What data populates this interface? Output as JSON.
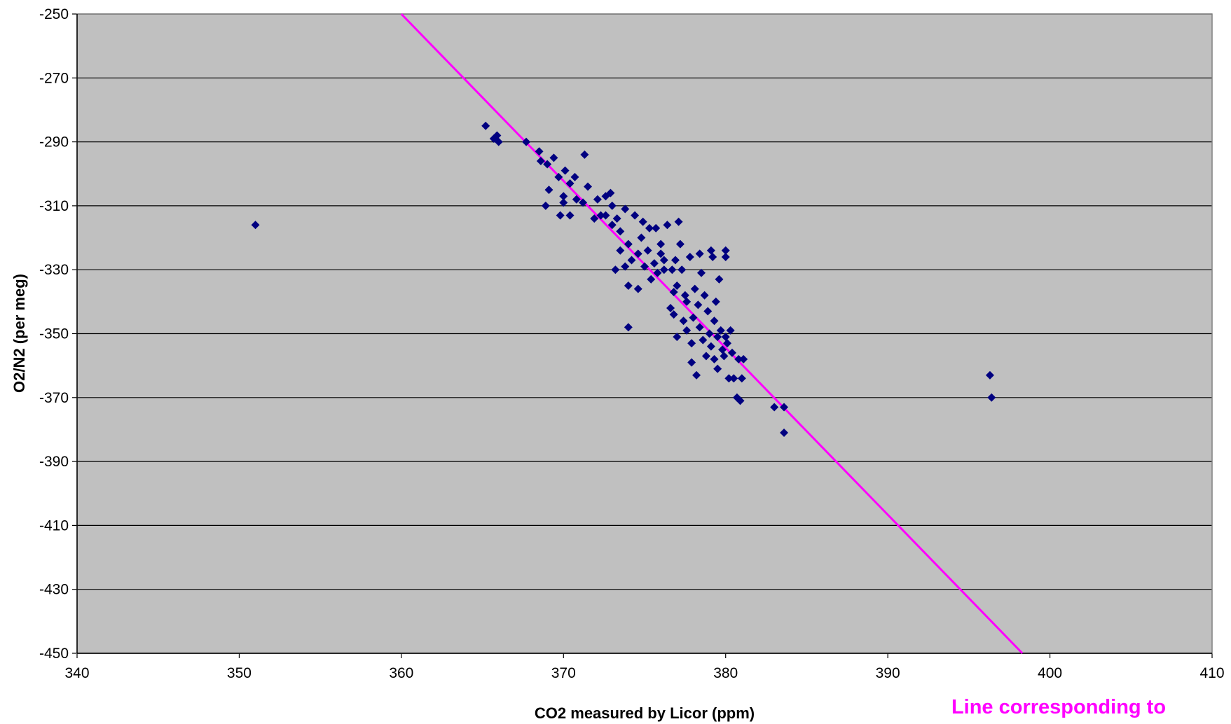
{
  "chart_data": {
    "type": "scatter",
    "xlabel": "CO2 measured by Licor (ppm)",
    "ylabel": "O2/N2  (per meg)",
    "xlim": [
      340,
      410
    ],
    "ylim": [
      -450,
      -250
    ],
    "xticks": [
      "340",
      "350",
      "360",
      "370",
      "380",
      "390",
      "400",
      "410"
    ],
    "yticks": [
      "-250",
      "-270",
      "-290",
      "-310",
      "-330",
      "-350",
      "-370",
      "-390",
      "-410",
      "-430",
      "-450"
    ],
    "grid": "horizontal",
    "plot_background": "#c0c0c0",
    "colors": {
      "points": "#000080",
      "line": "#ff00ff"
    },
    "marker": "diamond",
    "annotation": "Line corresponding to",
    "reference_line": {
      "x": [
        360.0,
        398.3
      ],
      "y": [
        -250,
        -451
      ]
    },
    "series": [
      {
        "points": [
          [
            351.0,
            -316
          ],
          [
            365.2,
            -285
          ],
          [
            365.7,
            -289
          ],
          [
            366.0,
            -290
          ],
          [
            365.9,
            -288
          ],
          [
            367.7,
            -290
          ],
          [
            368.5,
            -293
          ],
          [
            368.6,
            -296
          ],
          [
            369.0,
            -297
          ],
          [
            369.4,
            -295
          ],
          [
            369.1,
            -305
          ],
          [
            368.9,
            -310
          ],
          [
            369.7,
            -301
          ],
          [
            370.0,
            -307
          ],
          [
            370.0,
            -309
          ],
          [
            369.8,
            -313
          ],
          [
            370.4,
            -313
          ],
          [
            370.1,
            -299
          ],
          [
            370.4,
            -303
          ],
          [
            370.7,
            -301
          ],
          [
            370.8,
            -308
          ],
          [
            371.2,
            -309
          ],
          [
            371.3,
            -294
          ],
          [
            371.5,
            -304
          ],
          [
            371.9,
            -314
          ],
          [
            372.1,
            -308
          ],
          [
            372.3,
            -313
          ],
          [
            372.6,
            -313
          ],
          [
            372.6,
            -307
          ],
          [
            372.9,
            -306
          ],
          [
            373.0,
            -310
          ],
          [
            373.0,
            -316
          ],
          [
            373.3,
            -314
          ],
          [
            373.2,
            -330
          ],
          [
            373.5,
            -324
          ],
          [
            373.5,
            -318
          ],
          [
            373.8,
            -311
          ],
          [
            373.8,
            -329
          ],
          [
            374.0,
            -322
          ],
          [
            374.0,
            -335
          ],
          [
            374.2,
            -327
          ],
          [
            374.4,
            -313
          ],
          [
            374.6,
            -325
          ],
          [
            374.6,
            -336
          ],
          [
            374.0,
            -348
          ],
          [
            374.8,
            -320
          ],
          [
            374.9,
            -315
          ],
          [
            375.0,
            -329
          ],
          [
            375.2,
            -324
          ],
          [
            375.3,
            -317
          ],
          [
            375.4,
            -333
          ],
          [
            375.6,
            -328
          ],
          [
            375.7,
            -317
          ],
          [
            375.8,
            -331
          ],
          [
            376.0,
            -325
          ],
          [
            376.0,
            -322
          ],
          [
            376.2,
            -330
          ],
          [
            376.2,
            -327
          ],
          [
            376.4,
            -316
          ],
          [
            376.6,
            -342
          ],
          [
            376.7,
            -330
          ],
          [
            376.8,
            -337
          ],
          [
            376.8,
            -344
          ],
          [
            376.9,
            -327
          ],
          [
            377.0,
            -335
          ],
          [
            377.1,
            -315
          ],
          [
            377.0,
            -351
          ],
          [
            377.2,
            -322
          ],
          [
            377.3,
            -330
          ],
          [
            377.4,
            -346
          ],
          [
            377.5,
            -338
          ],
          [
            377.6,
            -349
          ],
          [
            377.6,
            -340
          ],
          [
            377.8,
            -326
          ],
          [
            377.9,
            -353
          ],
          [
            377.9,
            -359
          ],
          [
            378.0,
            -345
          ],
          [
            378.1,
            -336
          ],
          [
            378.2,
            -363
          ],
          [
            378.3,
            -341
          ],
          [
            378.4,
            -348
          ],
          [
            378.4,
            -325
          ],
          [
            378.5,
            -331
          ],
          [
            378.6,
            -352
          ],
          [
            378.7,
            -338
          ],
          [
            378.8,
            -357
          ],
          [
            378.9,
            -343
          ],
          [
            379.0,
            -350
          ],
          [
            379.1,
            -354
          ],
          [
            379.1,
            -324
          ],
          [
            379.2,
            -326
          ],
          [
            379.3,
            -346
          ],
          [
            379.3,
            -358
          ],
          [
            379.4,
            -340
          ],
          [
            379.5,
            -361
          ],
          [
            379.5,
            -351
          ],
          [
            379.6,
            -333
          ],
          [
            379.7,
            -349
          ],
          [
            379.8,
            -355
          ],
          [
            379.9,
            -357
          ],
          [
            380.0,
            -324
          ],
          [
            380.0,
            -326
          ],
          [
            380.0,
            -351
          ],
          [
            380.1,
            -353
          ],
          [
            380.2,
            -364
          ],
          [
            380.3,
            -349
          ],
          [
            380.4,
            -356
          ],
          [
            380.5,
            -364
          ],
          [
            380.7,
            -370
          ],
          [
            380.8,
            -358
          ],
          [
            380.9,
            -371
          ],
          [
            381.0,
            -364
          ],
          [
            381.1,
            -358
          ],
          [
            383.0,
            -373
          ],
          [
            383.6,
            -373
          ],
          [
            383.6,
            -381
          ],
          [
            396.3,
            -363
          ],
          [
            396.4,
            -370
          ]
        ]
      }
    ]
  }
}
